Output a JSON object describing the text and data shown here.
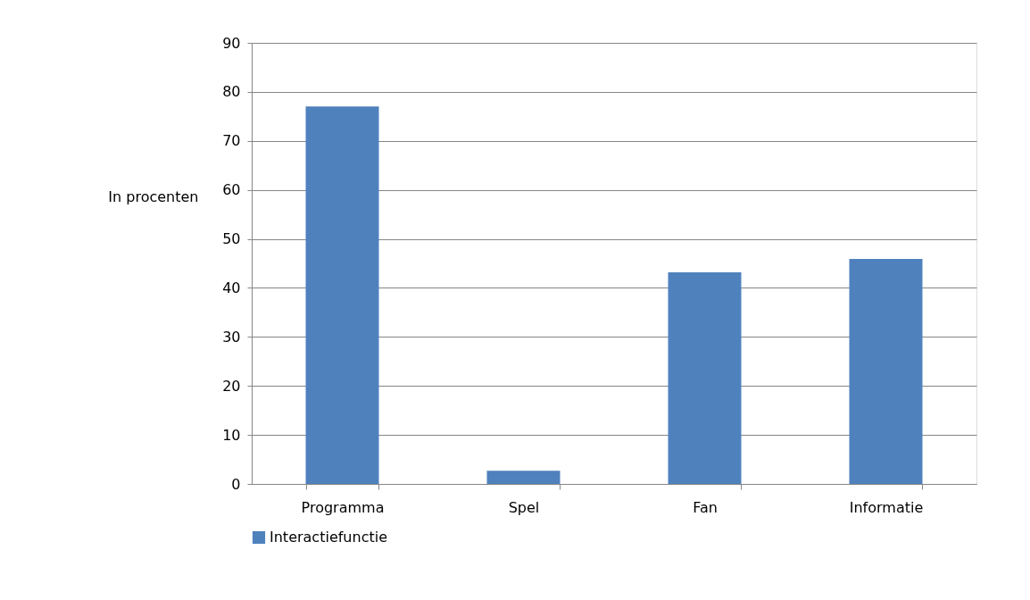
{
  "chart_data": {
    "type": "bar",
    "ylabel": "In procenten",
    "categories": [
      "Programma",
      "Spel",
      "Fan",
      "Informatie"
    ],
    "series": [
      {
        "name": "Interactiefunctie",
        "color": "#4f81bd",
        "values": [
          77,
          2.7,
          43.2,
          45.9
        ]
      }
    ],
    "ylim": [
      0,
      90
    ],
    "yticks": [
      0,
      10,
      20,
      30,
      40,
      50,
      60,
      70,
      80,
      90
    ],
    "grid": "y",
    "legend": "bottom"
  }
}
